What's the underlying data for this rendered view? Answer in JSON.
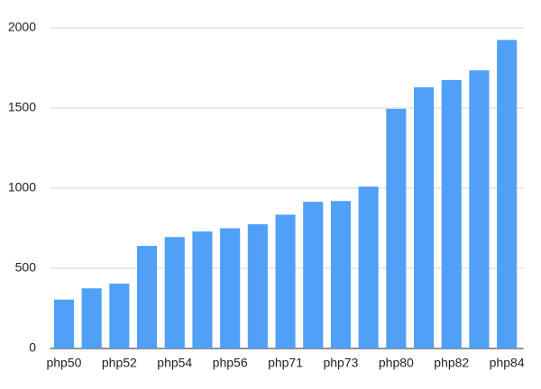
{
  "chart_data": {
    "type": "bar",
    "categories": [
      "php50",
      null,
      "php52",
      null,
      "php54",
      null,
      "php56",
      null,
      "php71",
      null,
      "php73",
      null,
      "php80",
      null,
      "php82",
      null,
      "php84"
    ],
    "values": [
      305,
      375,
      405,
      640,
      695,
      730,
      750,
      775,
      835,
      915,
      920,
      1010,
      1495,
      1630,
      1675,
      1735,
      1925
    ],
    "color": "#4fa0f6",
    "ylim": [
      0,
      2000
    ],
    "yticks": [
      0,
      500,
      1000,
      1500,
      2000
    ],
    "grid": true
  }
}
